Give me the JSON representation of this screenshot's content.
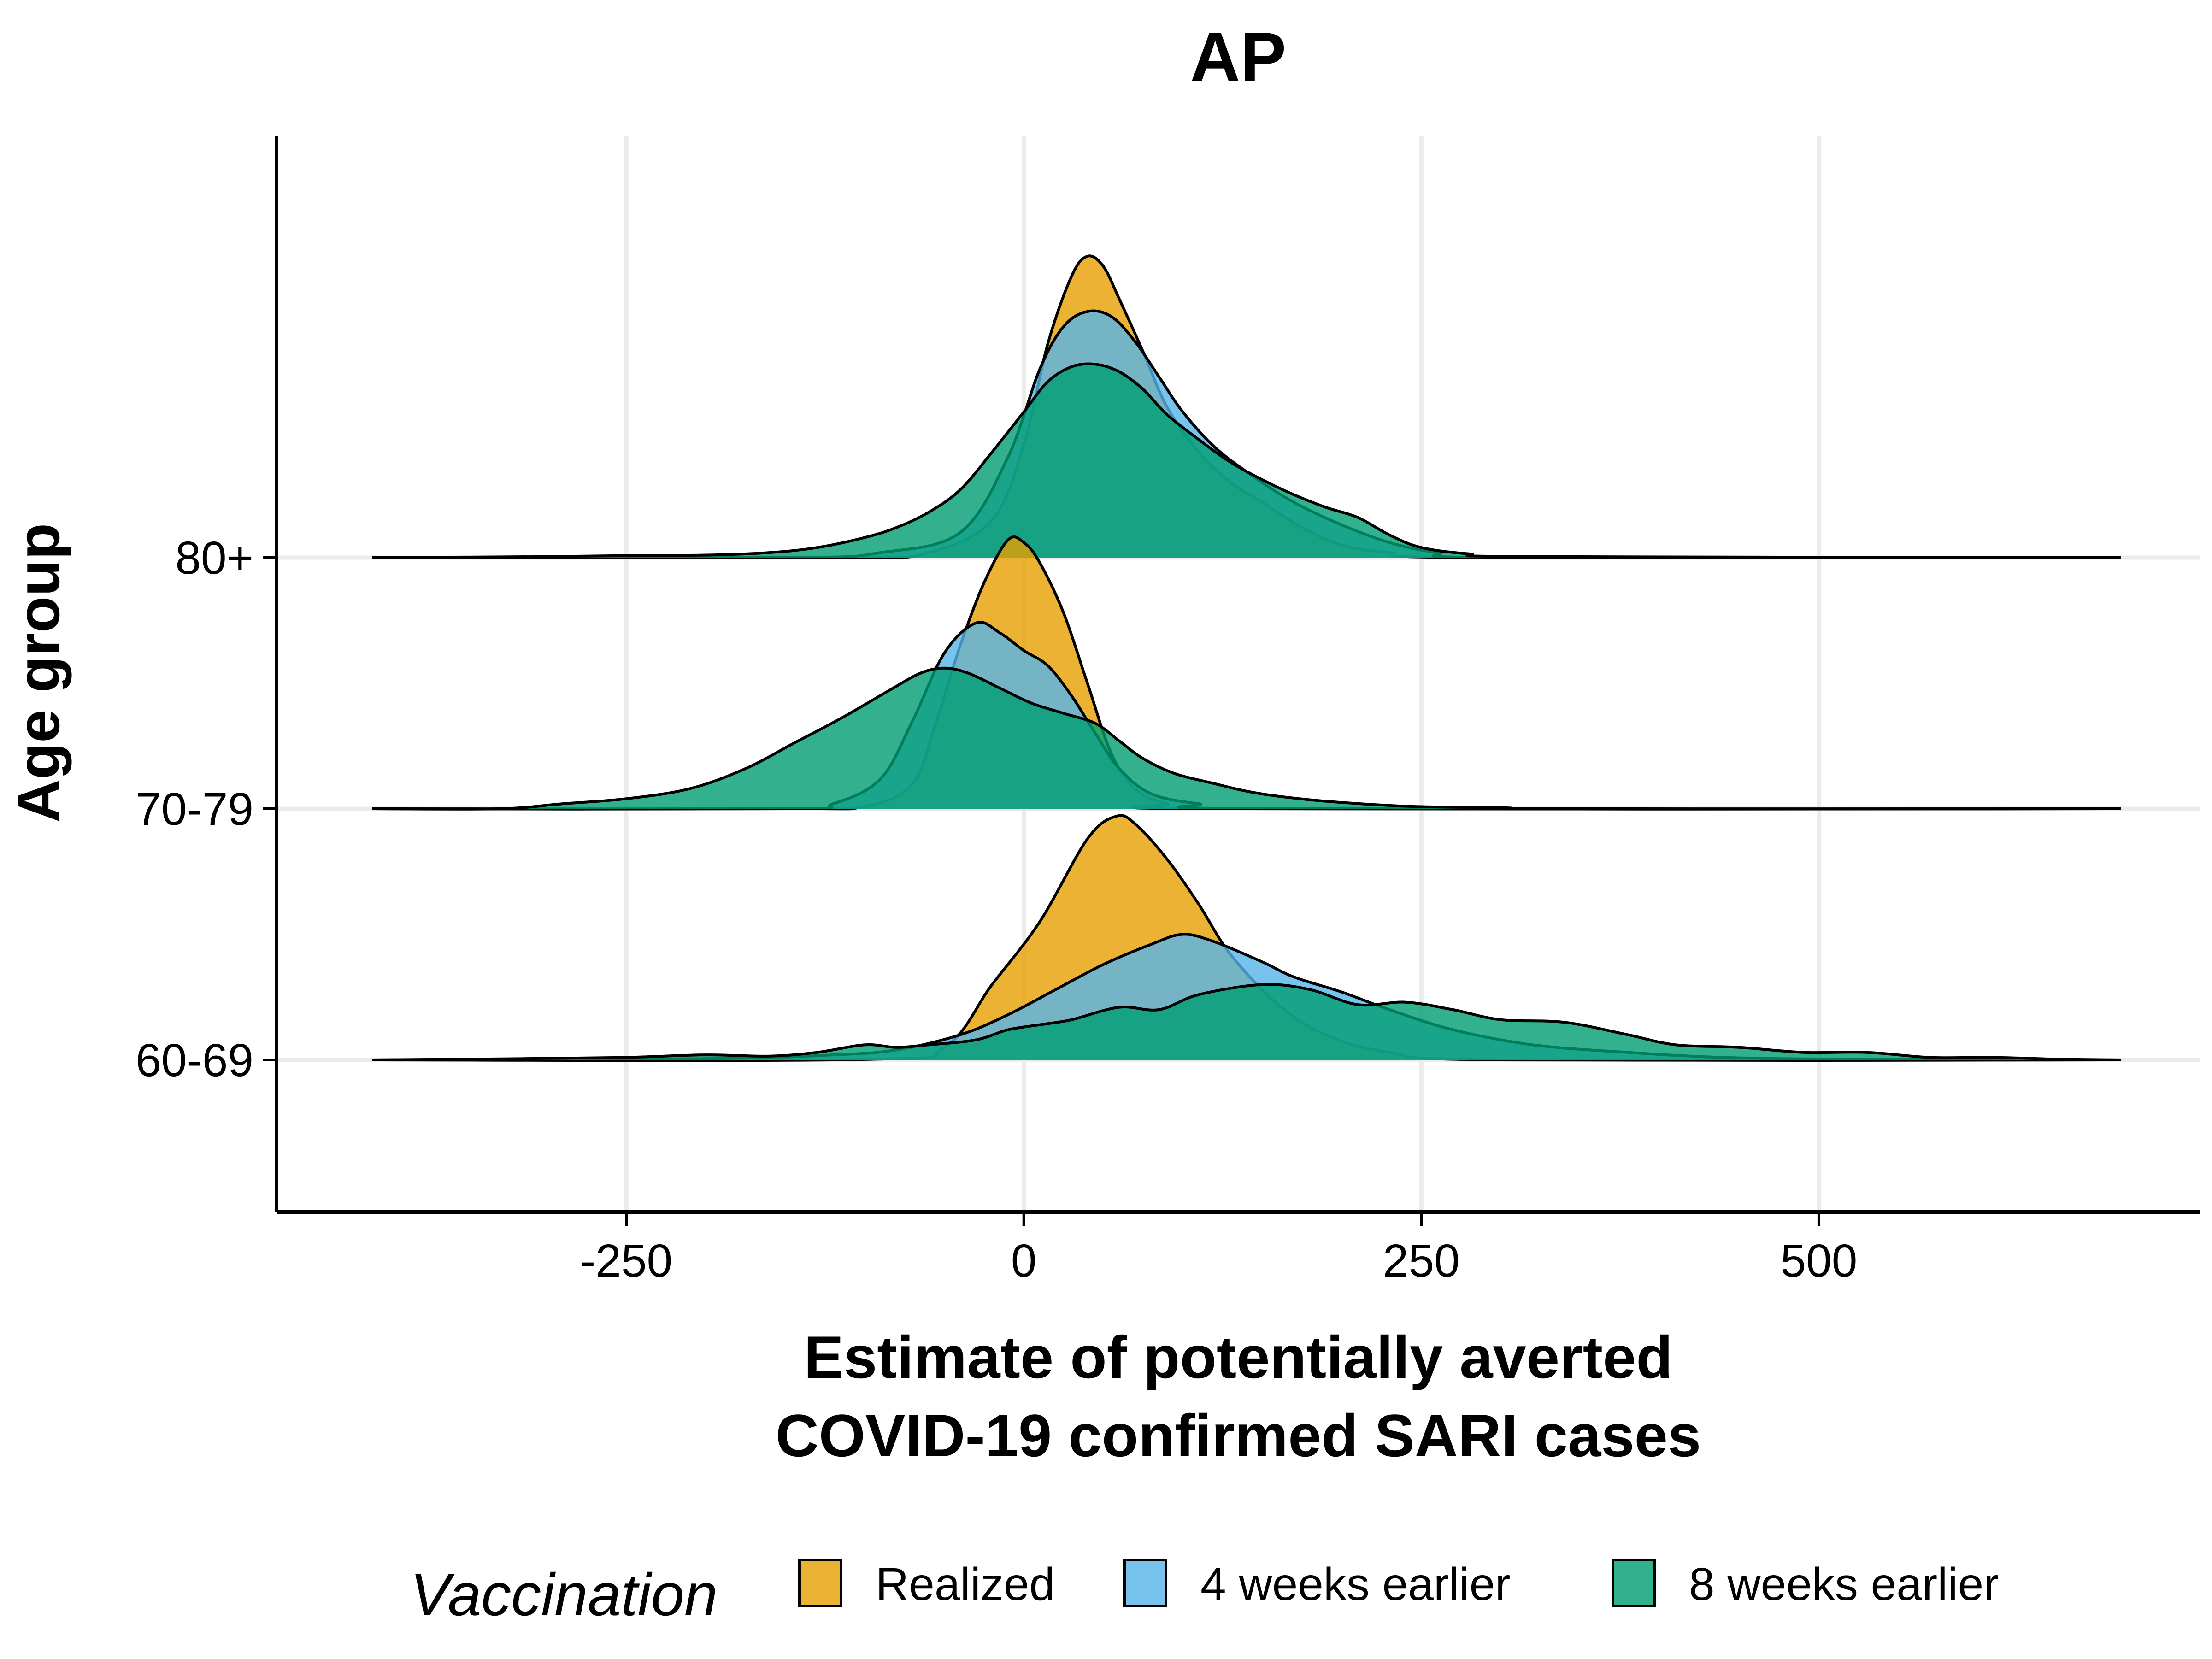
{
  "chart_data": {
    "type": "area",
    "subtype": "ridgeline-density",
    "title": "AP",
    "xlabel_lines": [
      "Estimate of potentially averted",
      "COVID-19 confirmed SARI cases"
    ],
    "ylabel": "Age group",
    "xlim": [
      -470,
      740
    ],
    "x_ticks": [
      -250,
      0,
      250,
      500
    ],
    "x_tick_labels": [
      "-250",
      "0",
      "250",
      "500"
    ],
    "grid": true,
    "legend": {
      "title": "Vaccination",
      "position": "bottom",
      "entries": [
        "Realized",
        "4 weeks earlier",
        "8 weeks earlier"
      ]
    },
    "colors": {
      "Realized": "#E69F00",
      "4 weeks earlier": "#56B4E9",
      "8 weeks earlier": "#009E73"
    },
    "fill_opacity": 0.8,
    "ridge_height_units": 1.7,
    "groups": [
      {
        "label": "60-69",
        "series": [
          {
            "name": "Realized",
            "points": [
              [
                -410,
                0
              ],
              [
                -100,
                0.002
              ],
              [
                -50,
                0.05
              ],
              [
                -20,
                0.3
              ],
              [
                10,
                0.55
              ],
              [
                40,
                0.88
              ],
              [
                58,
                0.97
              ],
              [
                70,
                0.94
              ],
              [
                90,
                0.8
              ],
              [
                110,
                0.62
              ],
              [
                130,
                0.42
              ],
              [
                160,
                0.22
              ],
              [
                190,
                0.1
              ],
              [
                230,
                0.03
              ],
              [
                300,
                0
              ],
              [
                690,
                0
              ]
            ]
          },
          {
            "name": "4 weeks earlier",
            "points": [
              [
                -410,
                0
              ],
              [
                -200,
                0.005
              ],
              [
                -120,
                0.02
              ],
              [
                -80,
                0.04
              ],
              [
                -40,
                0.1
              ],
              [
                -10,
                0.18
              ],
              [
                20,
                0.28
              ],
              [
                50,
                0.38
              ],
              [
                80,
                0.46
              ],
              [
                100,
                0.5
              ],
              [
                120,
                0.47
              ],
              [
                150,
                0.39
              ],
              [
                170,
                0.33
              ],
              [
                200,
                0.27
              ],
              [
                230,
                0.2
              ],
              [
                270,
                0.12
              ],
              [
                320,
                0.06
              ],
              [
                380,
                0.03
              ],
              [
                440,
                0.01
              ],
              [
                520,
                0.003
              ],
              [
                690,
                0
              ]
            ]
          },
          {
            "name": "8 weeks earlier",
            "points": [
              [
                -410,
                0
              ],
              [
                -350,
                0.003
              ],
              [
                -300,
                0.006
              ],
              [
                -250,
                0.01
              ],
              [
                -200,
                0.02
              ],
              [
                -160,
                0.015
              ],
              [
                -130,
                0.03
              ],
              [
                -100,
                0.06
              ],
              [
                -80,
                0.05
              ],
              [
                -60,
                0.06
              ],
              [
                -30,
                0.08
              ],
              [
                -10,
                0.12
              ],
              [
                10,
                0.14
              ],
              [
                30,
                0.16
              ],
              [
                60,
                0.21
              ],
              [
                85,
                0.2
              ],
              [
                110,
                0.26
              ],
              [
                150,
                0.3
              ],
              [
                180,
                0.28
              ],
              [
                210,
                0.22
              ],
              [
                240,
                0.23
              ],
              [
                270,
                0.2
              ],
              [
                300,
                0.16
              ],
              [
                340,
                0.15
              ],
              [
                380,
                0.1
              ],
              [
                410,
                0.06
              ],
              [
                450,
                0.05
              ],
              [
                490,
                0.03
              ],
              [
                530,
                0.03
              ],
              [
                570,
                0.01
              ],
              [
                610,
                0.01
              ],
              [
                650,
                0.003
              ],
              [
                690,
                0
              ]
            ]
          }
        ]
      },
      {
        "label": "70-79",
        "series": [
          {
            "name": "Realized",
            "points": [
              [
                -410,
                0
              ],
              [
                -150,
                0
              ],
              [
                -100,
                0.01
              ],
              [
                -70,
                0.1
              ],
              [
                -55,
                0.35
              ],
              [
                -40,
                0.65
              ],
              [
                -25,
                0.9
              ],
              [
                -10,
                1.07
              ],
              [
                0,
                1.06
              ],
              [
                10,
                0.98
              ],
              [
                25,
                0.78
              ],
              [
                40,
                0.5
              ],
              [
                55,
                0.22
              ],
              [
                70,
                0.08
              ],
              [
                90,
                0.02
              ],
              [
                120,
                0
              ],
              [
                690,
                0
              ]
            ]
          },
          {
            "name": "4 weeks earlier",
            "points": [
              [
                -410,
                0
              ],
              [
                -150,
                0
              ],
              [
                -120,
                0.02
              ],
              [
                -90,
                0.12
              ],
              [
                -70,
                0.35
              ],
              [
                -50,
                0.62
              ],
              [
                -30,
                0.74
              ],
              [
                -15,
                0.7
              ],
              [
                0,
                0.63
              ],
              [
                15,
                0.57
              ],
              [
                30,
                0.45
              ],
              [
                45,
                0.3
              ],
              [
                60,
                0.16
              ],
              [
                80,
                0.06
              ],
              [
                110,
                0.02
              ],
              [
                150,
                0
              ],
              [
                690,
                0
              ]
            ]
          },
          {
            "name": "8 weeks earlier",
            "points": [
              [
                -410,
                0
              ],
              [
                -330,
                0
              ],
              [
                -290,
                0.02
              ],
              [
                -250,
                0.04
              ],
              [
                -210,
                0.08
              ],
              [
                -175,
                0.16
              ],
              [
                -145,
                0.26
              ],
              [
                -115,
                0.36
              ],
              [
                -85,
                0.47
              ],
              [
                -65,
                0.54
              ],
              [
                -50,
                0.56
              ],
              [
                -35,
                0.54
              ],
              [
                -15,
                0.48
              ],
              [
                5,
                0.42
              ],
              [
                25,
                0.38
              ],
              [
                45,
                0.34
              ],
              [
                60,
                0.27
              ],
              [
                75,
                0.2
              ],
              [
                95,
                0.14
              ],
              [
                120,
                0.1
              ],
              [
                140,
                0.07
              ],
              [
                160,
                0.05
              ],
              [
                190,
                0.03
              ],
              [
                240,
                0.01
              ],
              [
                300,
                0.004
              ],
              [
                350,
                0
              ],
              [
                690,
                0
              ]
            ]
          }
        ]
      },
      {
        "label": "80+",
        "series": [
          {
            "name": "Realized",
            "points": [
              [
                -410,
                0
              ],
              [
                -120,
                0
              ],
              [
                -60,
                0.02
              ],
              [
                -20,
                0.15
              ],
              [
                0,
                0.45
              ],
              [
                15,
                0.85
              ],
              [
                30,
                1.12
              ],
              [
                40,
                1.2
              ],
              [
                50,
                1.16
              ],
              [
                60,
                1.03
              ],
              [
                75,
                0.82
              ],
              [
                90,
                0.6
              ],
              [
                110,
                0.42
              ],
              [
                130,
                0.3
              ],
              [
                150,
                0.22
              ],
              [
                175,
                0.12
              ],
              [
                200,
                0.05
              ],
              [
                230,
                0.02
              ],
              [
                280,
                0
              ],
              [
                690,
                0
              ]
            ]
          },
          {
            "name": "4 weeks earlier",
            "points": [
              [
                -410,
                0
              ],
              [
                -150,
                0
              ],
              [
                -90,
                0.02
              ],
              [
                -40,
                0.1
              ],
              [
                -10,
                0.4
              ],
              [
                10,
                0.75
              ],
              [
                25,
                0.92
              ],
              [
                40,
                0.98
              ],
              [
                55,
                0.96
              ],
              [
                70,
                0.86
              ],
              [
                85,
                0.72
              ],
              [
                100,
                0.58
              ],
              [
                120,
                0.44
              ],
              [
                145,
                0.32
              ],
              [
                170,
                0.22
              ],
              [
                200,
                0.13
              ],
              [
                230,
                0.06
              ],
              [
                260,
                0.02
              ],
              [
                300,
                0
              ],
              [
                690,
                0
              ]
            ]
          },
          {
            "name": "8 weeks earlier",
            "points": [
              [
                -410,
                0
              ],
              [
                -300,
                0.004
              ],
              [
                -250,
                0.008
              ],
              [
                -200,
                0.01
              ],
              [
                -160,
                0.02
              ],
              [
                -130,
                0.04
              ],
              [
                -100,
                0.08
              ],
              [
                -80,
                0.12
              ],
              [
                -60,
                0.18
              ],
              [
                -40,
                0.27
              ],
              [
                -20,
                0.42
              ],
              [
                0,
                0.58
              ],
              [
                15,
                0.7
              ],
              [
                30,
                0.76
              ],
              [
                45,
                0.77
              ],
              [
                60,
                0.74
              ],
              [
                75,
                0.67
              ],
              [
                90,
                0.57
              ],
              [
                110,
                0.47
              ],
              [
                130,
                0.38
              ],
              [
                150,
                0.31
              ],
              [
                170,
                0.25
              ],
              [
                190,
                0.2
              ],
              [
                210,
                0.16
              ],
              [
                230,
                0.09
              ],
              [
                250,
                0.04
              ],
              [
                280,
                0.015
              ],
              [
                320,
                0.004
              ],
              [
                690,
                0
              ]
            ]
          }
        ]
      }
    ]
  }
}
